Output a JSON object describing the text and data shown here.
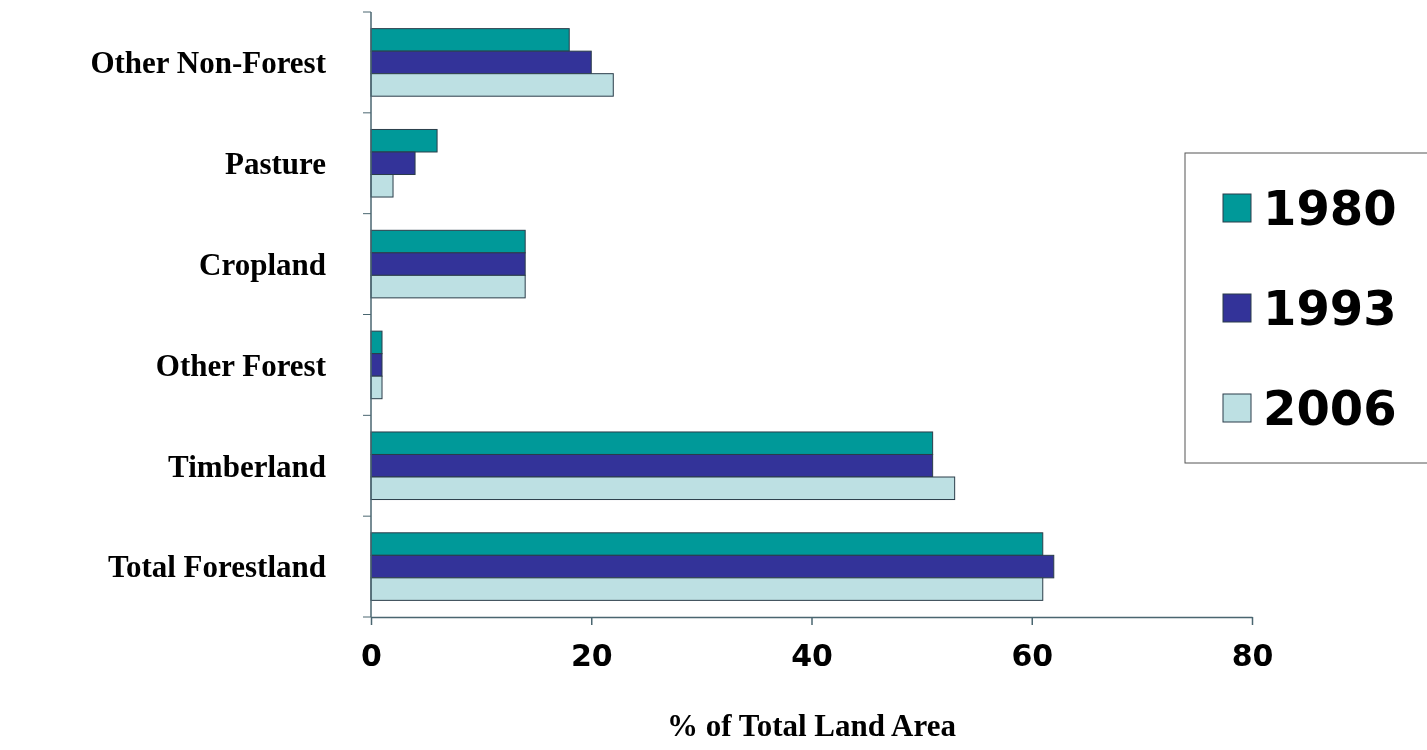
{
  "chart_data": {
    "type": "bar",
    "orientation": "horizontal",
    "xlabel": "% of Total Land Area",
    "categories": [
      "Other Non-Forest",
      "Pasture",
      "Cropland",
      "Other Forest",
      "Timberland",
      "Total Forestland"
    ],
    "series": [
      {
        "name": "1980",
        "color": "#009999",
        "values": [
          18,
          6,
          14,
          1,
          51,
          61
        ]
      },
      {
        "name": "1993",
        "color": "#333399",
        "values": [
          20,
          4,
          14,
          1,
          51,
          62
        ]
      },
      {
        "name": "2006",
        "color": "#bde0e3",
        "values": [
          22,
          2,
          14,
          1,
          53,
          61
        ]
      }
    ],
    "xlim": [
      0,
      80
    ],
    "xticks": [
      0,
      20,
      40,
      60,
      80
    ],
    "grid": false,
    "legend": "right"
  }
}
